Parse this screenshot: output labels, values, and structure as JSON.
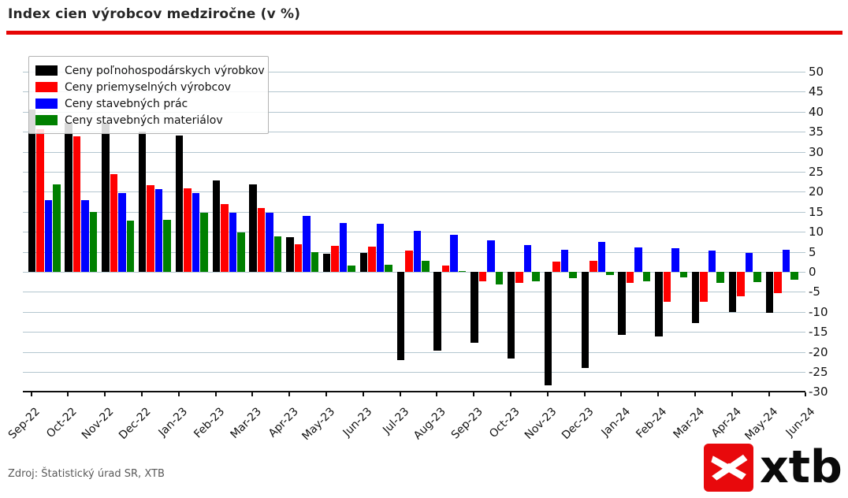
{
  "title": "Index cien výrobcov medziročne (v %)",
  "source": "Zdroj: Štatistický úrad SR, XTB",
  "logo": {
    "text": "xtb",
    "box_color": "#e8090c"
  },
  "accent_rule_color": "#e60505",
  "chart_data": {
    "type": "bar",
    "title": "Index cien výrobcov medziročne (v %)",
    "categories": [
      "Sep-22",
      "Oct-22",
      "Nov-22",
      "Dec-22",
      "Jan-23",
      "Feb-23",
      "Mar-23",
      "Apr-23",
      "May-23",
      "Jun-23",
      "Jul-23",
      "Aug-23",
      "Sep-23",
      "Oct-23",
      "Nov-23",
      "Dec-23",
      "Jan-24",
      "Feb-24",
      "Mar-24",
      "Apr-24",
      "May-24",
      "Jun-24"
    ],
    "series": [
      {
        "name": "Ceny poľnohospodárskych výrobkov",
        "color": "#000000",
        "values": [
          40.5,
          37.2,
          37.2,
          35.0,
          34.1,
          22.9,
          21.8,
          8.7,
          4.6,
          4.7,
          -22.0,
          -19.7,
          -17.7,
          -21.7,
          -28.3,
          -24.0,
          -15.8,
          -16.1,
          -12.8,
          -10.0,
          -10.2,
          null
        ]
      },
      {
        "name": "Ceny priemyselných výrobcov",
        "color": "#ff0000",
        "values": [
          35.7,
          33.9,
          24.5,
          21.7,
          20.9,
          16.9,
          16.0,
          6.9,
          6.6,
          6.4,
          5.4,
          1.5,
          -2.4,
          -2.8,
          2.6,
          2.8,
          -2.8,
          -7.5,
          -7.5,
          -6.1,
          -5.3,
          null
        ]
      },
      {
        "name": "Ceny stavebných prác",
        "color": "#0000ff",
        "values": [
          17.9,
          17.9,
          19.6,
          20.7,
          19.6,
          14.8,
          14.8,
          13.9,
          12.2,
          12.0,
          10.3,
          9.3,
          7.9,
          6.7,
          5.5,
          7.5,
          6.2,
          6.0,
          5.4,
          4.8,
          5.6,
          null
        ]
      },
      {
        "name": "Ceny stavebných materiálov",
        "color": "#008000",
        "values": [
          21.8,
          15.0,
          12.9,
          13.1,
          14.8,
          9.8,
          8.8,
          4.9,
          1.6,
          1.8,
          2.8,
          0.2,
          -3.1,
          -2.4,
          -1.6,
          -0.8,
          -2.4,
          -1.4,
          -2.8,
          -2.6,
          -2.0,
          null
        ]
      }
    ],
    "ylim": [
      -30,
      50
    ],
    "ytick_step": 5,
    "grid": true,
    "gridline_color": "#b3c6cf",
    "legend_position": "top-left",
    "xlabel_rotation": 45
  }
}
